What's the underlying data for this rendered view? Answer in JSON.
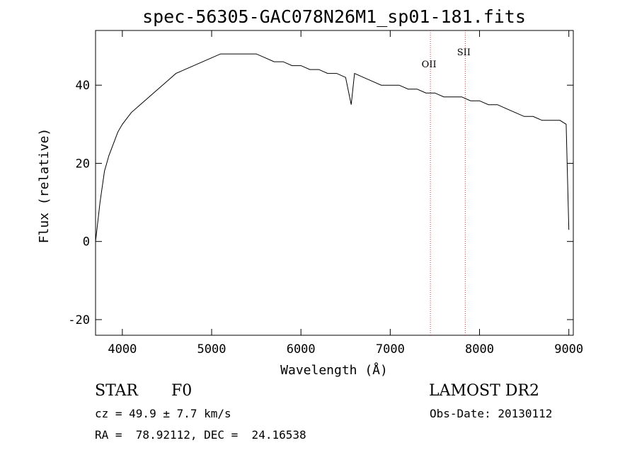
{
  "chart_data": {
    "type": "line",
    "title": "spec-56305-GAC078N26M1_sp01-181.fits",
    "xlabel": "Wavelength (Å)",
    "ylabel": "Flux (relative)",
    "xlim": [
      3700,
      9050
    ],
    "ylim": [
      -24,
      54
    ],
    "xticks": [
      4000,
      5000,
      6000,
      7000,
      8000,
      9000
    ],
    "yticks": [
      -20,
      0,
      20,
      40
    ],
    "grid": false,
    "series": [
      {
        "color": "#000000",
        "x": [
          3700,
          3750,
          3800,
          3850,
          3900,
          3950,
          4000,
          4100,
          4200,
          4300,
          4400,
          4500,
          4600,
          4700,
          4800,
          4900,
          5000,
          5100,
          5200,
          5300,
          5400,
          5500,
          5600,
          5700,
          5800,
          5900,
          6000,
          6100,
          6200,
          6300,
          6400,
          6500,
          6563,
          6600,
          6700,
          6800,
          6900,
          7000,
          7100,
          7200,
          7300,
          7400,
          7500,
          7600,
          7700,
          7800,
          7900,
          8000,
          8100,
          8200,
          8300,
          8400,
          8500,
          8600,
          8700,
          8800,
          8900,
          8970,
          9000
        ],
        "y": [
          0,
          10,
          18,
          22,
          25,
          28,
          30,
          33,
          35,
          37,
          39,
          41,
          43,
          44,
          45,
          46,
          47,
          48,
          48,
          48,
          48,
          48,
          47,
          46,
          46,
          45,
          45,
          44,
          44,
          43,
          43,
          42,
          35,
          43,
          42,
          41,
          40,
          40,
          40,
          39,
          39,
          38,
          38,
          37,
          37,
          37,
          36,
          36,
          35,
          35,
          34,
          33,
          32,
          32,
          31,
          31,
          31,
          30,
          3
        ]
      }
    ],
    "annotations": [
      {
        "label": "OII",
        "x": 7450
      },
      {
        "label": "SII",
        "x": 7840
      }
    ]
  },
  "info": {
    "obj_type": "STAR",
    "subclass": "F0",
    "survey": "LAMOST DR2",
    "cz": "cz = 49.9 ± 7.7 km/s",
    "obs_date": "Obs-Date: 20130112",
    "coords": "RA =  78.92112, DEC =  24.16538"
  },
  "colors": {
    "spectrum": "#000000",
    "line_marker": "#cc3333"
  }
}
